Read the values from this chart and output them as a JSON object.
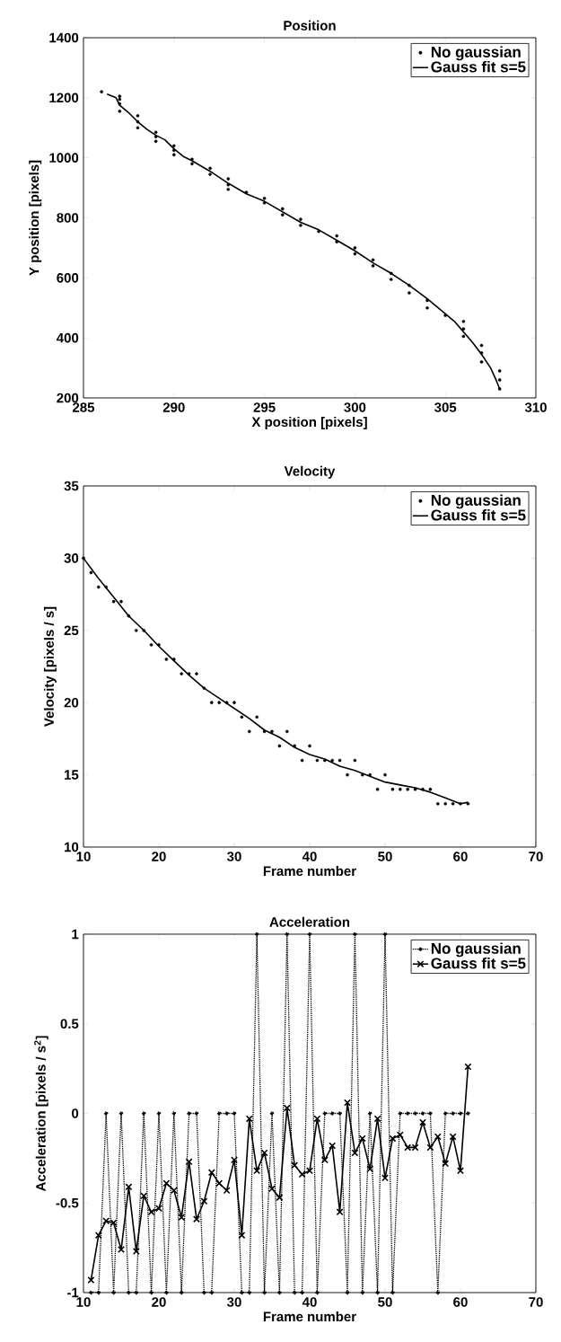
{
  "chart_data": [
    {
      "type": "scatter",
      "title": "Position",
      "xlabel": "X position [pixels]",
      "ylabel": "Y position [pixels]",
      "xlim": [
        285,
        310
      ],
      "ylim": [
        200,
        1400
      ],
      "xticks": [
        285,
        290,
        295,
        300,
        305,
        310
      ],
      "yticks": [
        200,
        400,
        600,
        800,
        1000,
        1200,
        1400
      ],
      "legend": "top right",
      "series": [
        {
          "name": "No gaussian",
          "type": "scatter",
          "color": "#000000",
          "marker": "circle",
          "x": [
            286,
            287,
            287,
            287,
            287,
            288,
            288,
            288,
            289,
            289,
            289,
            290,
            290,
            290,
            291,
            291,
            292,
            292,
            293,
            293,
            293,
            294,
            295,
            295,
            296,
            296,
            297,
            297,
            298,
            299,
            299,
            300,
            300,
            301,
            301,
            302,
            302,
            303,
            303,
            304,
            304,
            305,
            306,
            306,
            306,
            307,
            307,
            307,
            308,
            308,
            308
          ],
          "values": [
            1220,
            1205,
            1195,
            1180,
            1155,
            1140,
            1120,
            1100,
            1085,
            1070,
            1055,
            1040,
            1025,
            1010,
            995,
            980,
            965,
            945,
            930,
            910,
            895,
            885,
            865,
            850,
            830,
            810,
            795,
            775,
            755,
            740,
            720,
            700,
            680,
            660,
            640,
            615,
            595,
            575,
            550,
            525,
            500,
            475,
            455,
            430,
            405,
            375,
            350,
            320,
            290,
            260,
            230
          ]
        },
        {
          "name": "Gauss fit s=5",
          "type": "line",
          "color": "#000000",
          "marker": "none",
          "line_style": "solid",
          "x": [
            286.3,
            286.8,
            287,
            287.5,
            288,
            288.5,
            289,
            289.5,
            290,
            290.5,
            291,
            292,
            293,
            294,
            295,
            296,
            297,
            298,
            299,
            300,
            301,
            302,
            303,
            304,
            305,
            305.5,
            306,
            306.5,
            307,
            307.5,
            307.8,
            308
          ],
          "values": [
            1212,
            1200,
            1175,
            1150,
            1120,
            1095,
            1075,
            1060,
            1030,
            1005,
            990,
            955,
            915,
            880,
            855,
            820,
            785,
            760,
            725,
            690,
            650,
            615,
            575,
            530,
            480,
            455,
            420,
            385,
            345,
            300,
            260,
            230
          ]
        }
      ]
    },
    {
      "type": "scatter",
      "title": "Velocity",
      "xlabel": "Frame number",
      "ylabel": "Velocity [pixels / s]",
      "xlim": [
        10,
        70
      ],
      "ylim": [
        10,
        35
      ],
      "xticks": [
        10,
        20,
        30,
        40,
        50,
        60,
        70
      ],
      "yticks": [
        10,
        15,
        20,
        25,
        30,
        35
      ],
      "legend": "top right",
      "series": [
        {
          "name": "No gaussian",
          "type": "scatter",
          "color": "#000000",
          "marker": "circle",
          "x": [
            10,
            11,
            12,
            13,
            14,
            15,
            16,
            17,
            18,
            19,
            20,
            21,
            22,
            23,
            24,
            25,
            26,
            27,
            28,
            29,
            30,
            31,
            32,
            33,
            34,
            35,
            36,
            37,
            38,
            39,
            40,
            41,
            42,
            43,
            44,
            45,
            46,
            47,
            48,
            49,
            50,
            51,
            52,
            53,
            54,
            55,
            56,
            57,
            58,
            59,
            60,
            61
          ],
          "values": [
            30,
            29,
            28,
            28,
            27,
            27,
            26,
            25,
            25,
            24,
            24,
            23,
            23,
            22,
            22,
            22,
            21,
            20,
            20,
            20,
            20,
            19,
            18,
            19,
            18,
            18,
            17,
            18,
            17,
            16,
            17,
            16,
            16,
            16,
            16,
            15,
            16,
            15,
            15,
            14,
            15,
            14,
            14,
            14,
            14,
            14,
            14,
            13,
            13,
            13,
            13,
            13
          ]
        },
        {
          "name": "Gauss fit s=5",
          "type": "line",
          "color": "#000000",
          "marker": "none",
          "line_style": "solid",
          "x": [
            10,
            12,
            14,
            16,
            18,
            20,
            22,
            24,
            26,
            28,
            30,
            32,
            34,
            36,
            38,
            40,
            42,
            44,
            46,
            48,
            50,
            52,
            54,
            56,
            58,
            60,
            61
          ],
          "values": [
            30,
            28.6,
            27.3,
            26,
            25,
            23.9,
            22.9,
            21.9,
            21,
            20.3,
            19.6,
            18.9,
            18.1,
            17.6,
            16.9,
            16.4,
            16.1,
            15.6,
            15.3,
            14.9,
            14.5,
            14.3,
            14.1,
            13.8,
            13.4,
            13.0,
            13.1
          ]
        }
      ]
    },
    {
      "type": "line",
      "title": "Acceleration",
      "xlabel": "Frame number",
      "ylabel": "Acceleration [pixels / s$^{2}$]",
      "xlim": [
        10,
        70
      ],
      "ylim": [
        -1,
        1
      ],
      "xticks": [
        10,
        20,
        30,
        40,
        50,
        60,
        70
      ],
      "yticks": [
        -1,
        -0.5,
        0,
        0.5,
        1
      ],
      "legend": "top right",
      "x": [
        11,
        12,
        13,
        14,
        15,
        16,
        17,
        18,
        19,
        20,
        21,
        22,
        23,
        24,
        25,
        26,
        27,
        28,
        29,
        30,
        31,
        32,
        33,
        34,
        35,
        36,
        37,
        38,
        39,
        40,
        41,
        42,
        43,
        44,
        45,
        46,
        47,
        48,
        49,
        50,
        51,
        52,
        53,
        54,
        55,
        56,
        57,
        58,
        59,
        60,
        61
      ],
      "series": [
        {
          "name": "No gaussian",
          "color": "#000000",
          "marker": "circle",
          "line_style": "dotted",
          "values": [
            -1,
            -1,
            0,
            -1,
            0,
            -1,
            -1,
            0,
            -1,
            0,
            -1,
            0,
            -1,
            0,
            0,
            -1,
            -1,
            0,
            0,
            0,
            -1,
            -1,
            1,
            -1,
            0,
            -1,
            1,
            -1,
            -1,
            1,
            -1,
            0,
            0,
            0,
            -1,
            1,
            -1,
            0,
            -1,
            1,
            -1,
            0,
            0,
            0,
            0,
            0,
            -1,
            0,
            0,
            0,
            0
          ]
        },
        {
          "name": "Gauss fit s=5",
          "color": "#000000",
          "marker": "cross",
          "line_style": "solid",
          "values": [
            -0.93,
            -0.68,
            -0.6,
            -0.61,
            -0.76,
            -0.41,
            -0.77,
            -0.46,
            -0.55,
            -0.53,
            -0.39,
            -0.43,
            -0.58,
            -0.27,
            -0.59,
            -0.49,
            -0.33,
            -0.39,
            -0.43,
            -0.26,
            -0.68,
            -0.03,
            -0.32,
            -0.22,
            -0.42,
            -0.47,
            0.03,
            -0.29,
            -0.34,
            -0.32,
            -0.03,
            -0.26,
            -0.18,
            -0.55,
            0.06,
            -0.22,
            -0.14,
            -0.31,
            -0.03,
            -0.36,
            -0.14,
            -0.12,
            -0.19,
            -0.19,
            -0.05,
            -0.19,
            -0.13,
            -0.28,
            -0.13,
            -0.32,
            0.26
          ]
        }
      ]
    }
  ]
}
